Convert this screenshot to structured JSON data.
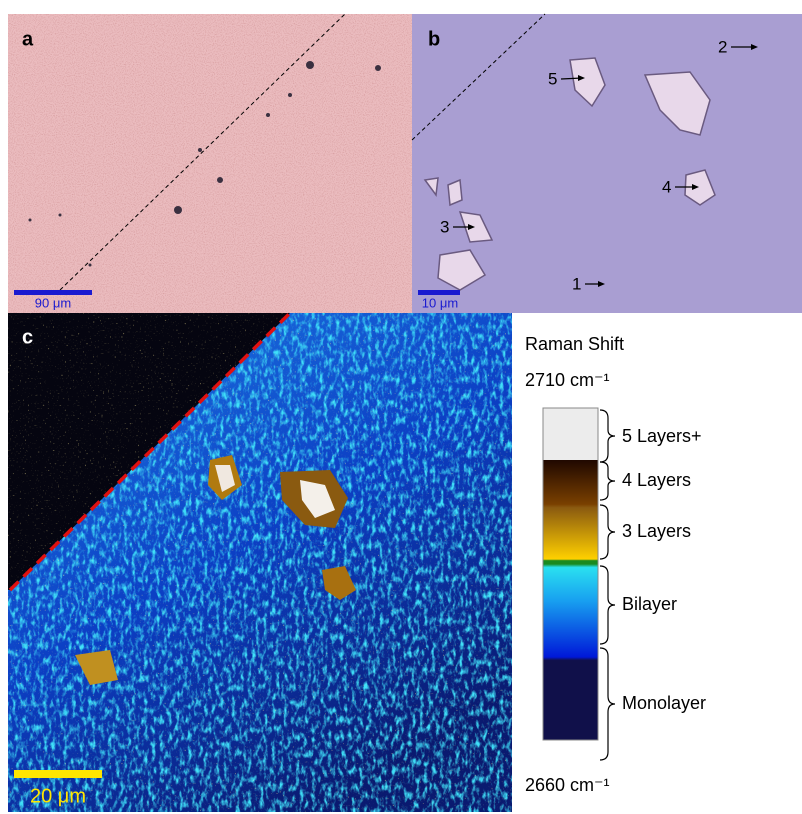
{
  "panels": {
    "a": {
      "label": "a",
      "scale_bar": "90 μm"
    },
    "b": {
      "label": "b",
      "scale_bar": "10 μm",
      "markers": [
        "1",
        "2",
        "3",
        "4",
        "5"
      ]
    },
    "c": {
      "label": "c",
      "scale_bar": "20 μm"
    }
  },
  "colorbar": {
    "title": "Raman Shift",
    "top": "2710 cm⁻¹",
    "bottom": "2660 cm⁻¹",
    "layers": [
      "5 Layers+",
      "4 Layers",
      "3 Layers",
      "Bilayer",
      "Monolayer"
    ]
  }
}
